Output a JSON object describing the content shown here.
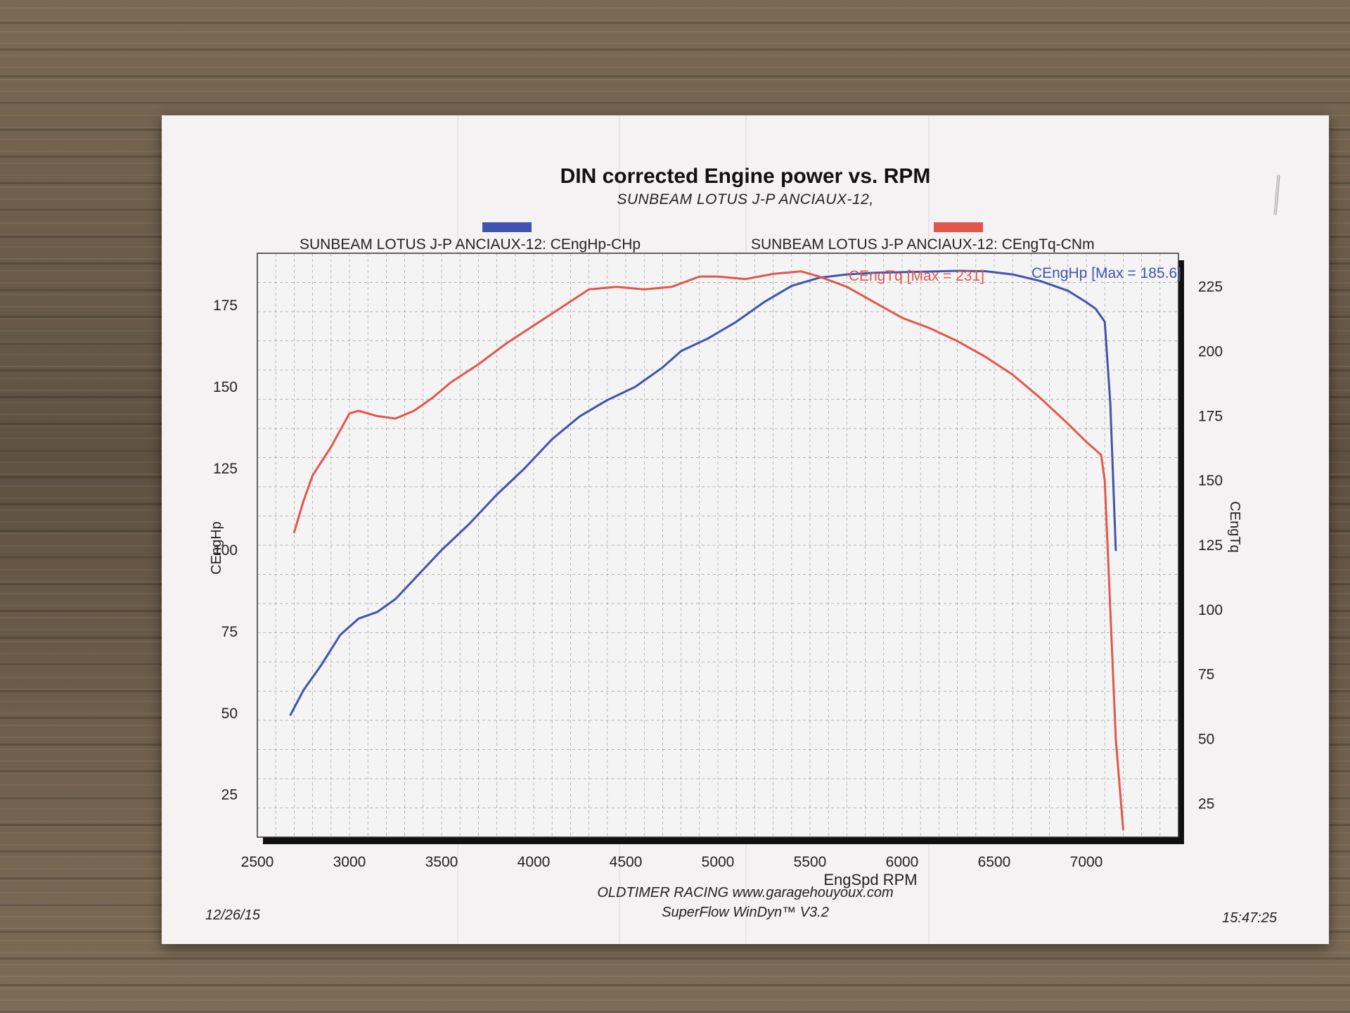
{
  "document": {
    "title": "DIN corrected Engine power vs. RPM",
    "subtitle": "SUNBEAM LOTUS J-P ANCIAUX-12,",
    "date": "12/26/15",
    "time": "15:47:25",
    "footer_line1": "OLDTIMER RACING www.garagehouyoux.com",
    "footer_line2": "SuperFlow WinDyn™ V3.2"
  },
  "chart_data": {
    "type": "line",
    "title": "DIN corrected Engine power vs. RPM",
    "subtitle": "SUNBEAM LOTUS J-P ANCIAUX-12,",
    "xlabel": "EngSpd RPM",
    "ylabel_left": "CEngHp",
    "ylabel_right": "CEngTq",
    "xlim": [
      2500,
      7500
    ],
    "ylim_left": [
      12,
      191
    ],
    "ylim_right": [
      12,
      238
    ],
    "xticks": [
      2500,
      3000,
      3500,
      4000,
      4500,
      5000,
      5500,
      6000,
      6500,
      7000
    ],
    "yticks_left": [
      25,
      50,
      75,
      100,
      125,
      150,
      175
    ],
    "yticks_right": [
      25,
      50,
      75,
      100,
      125,
      150,
      175,
      200,
      225
    ],
    "grid": true,
    "legend_position": "top",
    "series": [
      {
        "name": "SUNBEAM LOTUS J-P ANCIAUX-12: CEngHp-CHp",
        "annotation": "CEngHp [Max = 185.6]",
        "axis": "left",
        "color": "#3f55ad",
        "x": [
          2680,
          2750,
          2850,
          2950,
          3050,
          3150,
          3250,
          3350,
          3500,
          3650,
          3800,
          3950,
          4100,
          4250,
          4400,
          4550,
          4700,
          4800,
          4950,
          5100,
          5250,
          5400,
          5550,
          5700,
          5850,
          6000,
          6150,
          6300,
          6450,
          6600,
          6750,
          6900,
          7000,
          7050,
          7100,
          7130,
          7160
        ],
        "y": [
          49.5,
          57,
          65,
          74,
          79,
          81,
          85,
          91,
          100,
          108,
          117,
          125,
          134,
          141,
          146,
          150,
          156,
          161,
          165,
          170,
          176,
          181,
          183.5,
          184.5,
          185,
          185.2,
          185.4,
          185.6,
          185.5,
          184.5,
          182.5,
          179.5,
          176,
          174,
          170,
          145,
          100
        ]
      },
      {
        "name": "SUNBEAM LOTUS J-P ANCIAUX-12: CEngTq-CNm",
        "annotation": "CEngTq [Max = 231]",
        "axis": "right",
        "color": "#e2574c",
        "x": [
          2700,
          2750,
          2800,
          2900,
          3000,
          3050,
          3150,
          3250,
          3350,
          3450,
          3550,
          3700,
          3850,
          4000,
          4150,
          4300,
          4450,
          4600,
          4750,
          4900,
          5000,
          5150,
          5300,
          5450,
          5550,
          5700,
          5850,
          6000,
          6150,
          6300,
          6450,
          6600,
          6750,
          6900,
          7000,
          7080,
          7100,
          7130,
          7160,
          7200
        ],
        "y": [
          130,
          142,
          152,
          163,
          176,
          177,
          175,
          174,
          177,
          182,
          188,
          195,
          203,
          210,
          217,
          224,
          225,
          224,
          225,
          229,
          229,
          228,
          230,
          231,
          229,
          225,
          219,
          213,
          209,
          204,
          198,
          191,
          182,
          172,
          165,
          160,
          150,
          100,
          50,
          15
        ]
      }
    ]
  }
}
